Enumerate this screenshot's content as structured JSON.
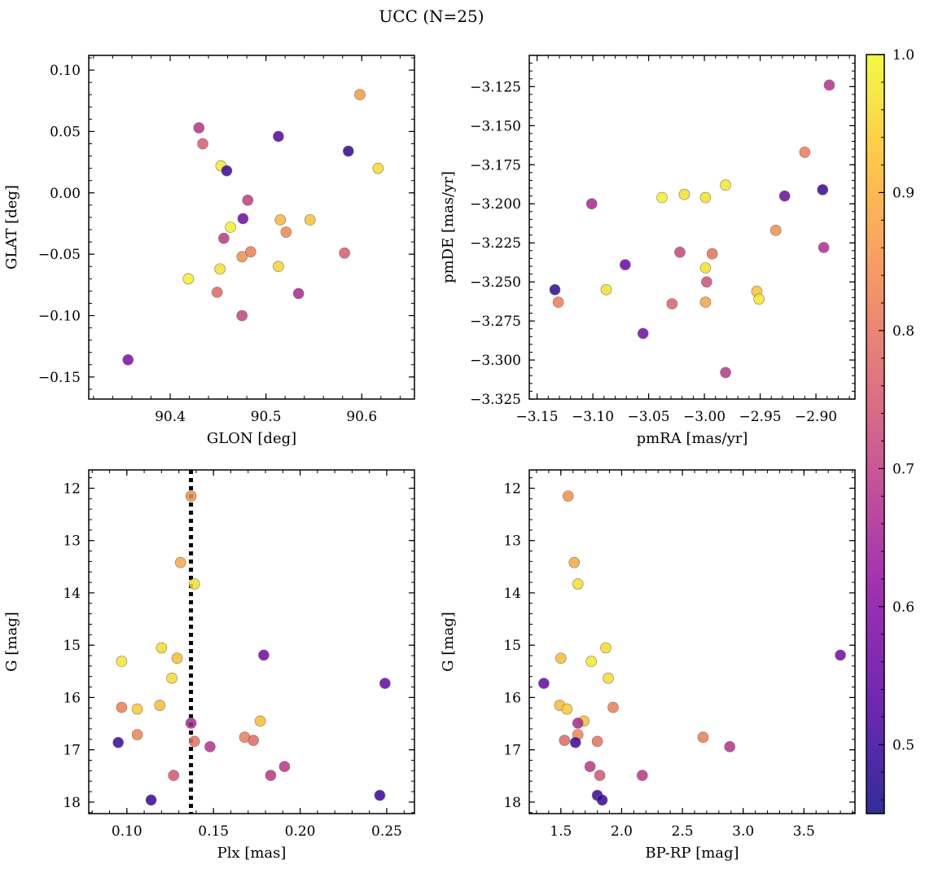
{
  "figure": {
    "title": "UCC (N=25)"
  },
  "colorbar": {
    "vmin": 0.45,
    "vmax": 1.0,
    "ticks": [
      0.5,
      0.6,
      0.7,
      0.8,
      0.9,
      1.0
    ],
    "tick_labels": [
      "0.5",
      "0.6",
      "0.7",
      "0.8",
      "0.9",
      "1.0"
    ],
    "colormap": "plasma"
  },
  "chart_data": [
    {
      "type": "scatter",
      "xlabel": "GLON [deg]",
      "ylabel": "GLAT [deg]",
      "xlim": [
        90.315,
        90.655
      ],
      "ylim": [
        -0.168,
        0.112
      ],
      "xticks": [
        90.4,
        90.5,
        90.6
      ],
      "xtick_labels": [
        "90.4",
        "90.5",
        "90.6"
      ],
      "yticks": [
        0.1,
        0.05,
        0.0,
        -0.05,
        -0.1,
        -0.15
      ],
      "ytick_labels": [
        "0.10",
        "0.05",
        "0.00",
        "−0.05",
        "−0.10",
        "−0.15"
      ],
      "invert_y": false,
      "vline": null,
      "points": [
        {
          "x": 90.598,
          "y": 0.08,
          "p": 0.87
        },
        {
          "x": 90.43,
          "y": 0.053,
          "p": 0.68
        },
        {
          "x": 90.513,
          "y": 0.046,
          "p": 0.53
        },
        {
          "x": 90.434,
          "y": 0.04,
          "p": 0.76
        },
        {
          "x": 90.586,
          "y": 0.034,
          "p": 0.49
        },
        {
          "x": 90.617,
          "y": 0.02,
          "p": 0.96
        },
        {
          "x": 90.453,
          "y": 0.022,
          "p": 0.98
        },
        {
          "x": 90.459,
          "y": 0.018,
          "p": 0.5
        },
        {
          "x": 90.481,
          "y": -0.006,
          "p": 0.7
        },
        {
          "x": 90.476,
          "y": -0.021,
          "p": 0.57
        },
        {
          "x": 90.515,
          "y": -0.022,
          "p": 0.91
        },
        {
          "x": 90.546,
          "y": -0.022,
          "p": 0.93
        },
        {
          "x": 90.463,
          "y": -0.028,
          "p": 0.99
        },
        {
          "x": 90.521,
          "y": -0.032,
          "p": 0.84
        },
        {
          "x": 90.456,
          "y": -0.037,
          "p": 0.69
        },
        {
          "x": 90.484,
          "y": -0.048,
          "p": 0.82
        },
        {
          "x": 90.582,
          "y": -0.049,
          "p": 0.76
        },
        {
          "x": 90.475,
          "y": -0.052,
          "p": 0.85
        },
        {
          "x": 90.513,
          "y": -0.06,
          "p": 0.95
        },
        {
          "x": 90.452,
          "y": -0.062,
          "p": 0.97
        },
        {
          "x": 90.419,
          "y": -0.07,
          "p": 0.99
        },
        {
          "x": 90.449,
          "y": -0.081,
          "p": 0.78
        },
        {
          "x": 90.534,
          "y": -0.082,
          "p": 0.66
        },
        {
          "x": 90.475,
          "y": -0.1,
          "p": 0.71
        },
        {
          "x": 90.356,
          "y": -0.136,
          "p": 0.59
        }
      ]
    },
    {
      "type": "scatter",
      "xlabel": "pmRA [mas/yr]",
      "ylabel": "pmDE [mas/yr]",
      "xlim": [
        -3.157,
        -2.865
      ],
      "ylim": [
        -3.325,
        -3.105
      ],
      "xticks": [
        -3.15,
        -3.1,
        -3.05,
        -3.0,
        -2.95,
        -2.9
      ],
      "xtick_labels": [
        "−3.15",
        "−3.10",
        "−3.05",
        "−3.00",
        "−2.95",
        "−2.90"
      ],
      "yticks": [
        -3.125,
        -3.15,
        -3.175,
        -3.2,
        -3.225,
        -3.25,
        -3.275,
        -3.3,
        -3.325
      ],
      "ytick_labels": [
        "−3.125",
        "−3.150",
        "−3.175",
        "−3.200",
        "−3.225",
        "−3.250",
        "−3.275",
        "−3.300",
        "−3.325"
      ],
      "invert_y": false,
      "vline": null,
      "points": [
        {
          "x": -2.888,
          "y": -3.124,
          "p": 0.68
        },
        {
          "x": -2.91,
          "y": -3.167,
          "p": 0.82
        },
        {
          "x": -2.894,
          "y": -3.191,
          "p": 0.5
        },
        {
          "x": -2.928,
          "y": -3.195,
          "p": 0.57
        },
        {
          "x": -2.981,
          "y": -3.188,
          "p": 0.98
        },
        {
          "x": -3.018,
          "y": -3.194,
          "p": 0.97
        },
        {
          "x": -3.038,
          "y": -3.196,
          "p": 0.99
        },
        {
          "x": -2.999,
          "y": -3.196,
          "p": 0.97
        },
        {
          "x": -3.101,
          "y": -3.2,
          "p": 0.66
        },
        {
          "x": -2.936,
          "y": -3.217,
          "p": 0.85
        },
        {
          "x": -2.893,
          "y": -3.228,
          "p": 0.67
        },
        {
          "x": -3.022,
          "y": -3.231,
          "p": 0.72
        },
        {
          "x": -2.993,
          "y": -3.232,
          "p": 0.8
        },
        {
          "x": -3.071,
          "y": -3.239,
          "p": 0.56
        },
        {
          "x": -2.999,
          "y": -3.241,
          "p": 0.97
        },
        {
          "x": -2.998,
          "y": -3.25,
          "p": 0.74
        },
        {
          "x": -3.134,
          "y": -3.255,
          "p": 0.49
        },
        {
          "x": -3.088,
          "y": -3.255,
          "p": 0.97
        },
        {
          "x": -2.953,
          "y": -3.256,
          "p": 0.93
        },
        {
          "x": -2.951,
          "y": -3.261,
          "p": 0.98
        },
        {
          "x": -3.131,
          "y": -3.263,
          "p": 0.82
        },
        {
          "x": -2.999,
          "y": -3.263,
          "p": 0.88
        },
        {
          "x": -3.029,
          "y": -3.264,
          "p": 0.77
        },
        {
          "x": -3.055,
          "y": -3.283,
          "p": 0.58
        },
        {
          "x": -2.981,
          "y": -3.308,
          "p": 0.69
        }
      ]
    },
    {
      "type": "scatter",
      "xlabel": "Plx [mas]",
      "ylabel": "G [mag]",
      "xlim": [
        0.078,
        0.266
      ],
      "ylim": [
        11.65,
        18.22
      ],
      "xticks": [
        0.1,
        0.15,
        0.2,
        0.25
      ],
      "xtick_labels": [
        "0.10",
        "0.15",
        "0.20",
        "0.25"
      ],
      "yticks": [
        12,
        13,
        14,
        15,
        16,
        17,
        18
      ],
      "ytick_labels": [
        "12",
        "13",
        "14",
        "15",
        "16",
        "17",
        "18"
      ],
      "invert_y": true,
      "vline": {
        "x": 0.137,
        "style": "dotted"
      },
      "points": [
        {
          "x": 0.137,
          "y": 12.15,
          "p": 0.85
        },
        {
          "x": 0.131,
          "y": 13.42,
          "p": 0.89
        },
        {
          "x": 0.139,
          "y": 13.83,
          "p": 0.97
        },
        {
          "x": 0.12,
          "y": 15.05,
          "p": 0.96
        },
        {
          "x": 0.179,
          "y": 15.19,
          "p": 0.57
        },
        {
          "x": 0.129,
          "y": 15.25,
          "p": 0.92
        },
        {
          "x": 0.097,
          "y": 15.31,
          "p": 0.98
        },
        {
          "x": 0.126,
          "y": 15.63,
          "p": 0.96
        },
        {
          "x": 0.249,
          "y": 15.73,
          "p": 0.55
        },
        {
          "x": 0.119,
          "y": 16.15,
          "p": 0.92
        },
        {
          "x": 0.097,
          "y": 16.19,
          "p": 0.82
        },
        {
          "x": 0.106,
          "y": 16.22,
          "p": 0.94
        },
        {
          "x": 0.177,
          "y": 16.45,
          "p": 0.92
        },
        {
          "x": 0.137,
          "y": 16.49,
          "p": 0.66
        },
        {
          "x": 0.106,
          "y": 16.71,
          "p": 0.83
        },
        {
          "x": 0.168,
          "y": 16.76,
          "p": 0.82
        },
        {
          "x": 0.173,
          "y": 16.82,
          "p": 0.78
        },
        {
          "x": 0.139,
          "y": 16.84,
          "p": 0.8
        },
        {
          "x": 0.095,
          "y": 16.86,
          "p": 0.5
        },
        {
          "x": 0.148,
          "y": 16.94,
          "p": 0.68
        },
        {
          "x": 0.191,
          "y": 17.32,
          "p": 0.69
        },
        {
          "x": 0.127,
          "y": 17.49,
          "p": 0.75
        },
        {
          "x": 0.183,
          "y": 17.49,
          "p": 0.69
        },
        {
          "x": 0.246,
          "y": 17.87,
          "p": 0.5
        },
        {
          "x": 0.114,
          "y": 17.96,
          "p": 0.5
        }
      ]
    },
    {
      "type": "scatter",
      "xlabel": "BP-RP [mag]",
      "ylabel": "G [mag]",
      "xlim": [
        1.24,
        3.92
      ],
      "ylim": [
        11.65,
        18.22
      ],
      "xticks": [
        1.5,
        2.0,
        2.5,
        3.0,
        3.5
      ],
      "xtick_labels": [
        "1.5",
        "2.0",
        "2.5",
        "3.0",
        "3.5"
      ],
      "yticks": [
        12,
        13,
        14,
        15,
        16,
        17,
        18
      ],
      "ytick_labels": [
        "12",
        "13",
        "14",
        "15",
        "16",
        "17",
        "18"
      ],
      "invert_y": true,
      "vline": null,
      "points": [
        {
          "x": 1.56,
          "y": 12.15,
          "p": 0.85
        },
        {
          "x": 1.61,
          "y": 13.42,
          "p": 0.89
        },
        {
          "x": 1.64,
          "y": 13.83,
          "p": 0.97
        },
        {
          "x": 1.87,
          "y": 15.05,
          "p": 0.96
        },
        {
          "x": 3.8,
          "y": 15.19,
          "p": 0.57
        },
        {
          "x": 1.5,
          "y": 15.25,
          "p": 0.92
        },
        {
          "x": 1.75,
          "y": 15.31,
          "p": 0.98
        },
        {
          "x": 1.89,
          "y": 15.63,
          "p": 0.96
        },
        {
          "x": 1.36,
          "y": 15.73,
          "p": 0.55
        },
        {
          "x": 1.49,
          "y": 16.15,
          "p": 0.92
        },
        {
          "x": 1.93,
          "y": 16.19,
          "p": 0.82
        },
        {
          "x": 1.55,
          "y": 16.22,
          "p": 0.94
        },
        {
          "x": 1.69,
          "y": 16.45,
          "p": 0.92
        },
        {
          "x": 1.64,
          "y": 16.49,
          "p": 0.66
        },
        {
          "x": 1.64,
          "y": 16.71,
          "p": 0.83
        },
        {
          "x": 2.67,
          "y": 16.76,
          "p": 0.82
        },
        {
          "x": 1.53,
          "y": 16.82,
          "p": 0.78
        },
        {
          "x": 1.8,
          "y": 16.84,
          "p": 0.8
        },
        {
          "x": 1.62,
          "y": 16.86,
          "p": 0.5
        },
        {
          "x": 2.89,
          "y": 16.94,
          "p": 0.68
        },
        {
          "x": 1.74,
          "y": 17.32,
          "p": 0.69
        },
        {
          "x": 1.82,
          "y": 17.49,
          "p": 0.75
        },
        {
          "x": 2.17,
          "y": 17.49,
          "p": 0.69
        },
        {
          "x": 1.8,
          "y": 17.87,
          "p": 0.5
        },
        {
          "x": 1.84,
          "y": 17.96,
          "p": 0.5
        }
      ]
    }
  ]
}
